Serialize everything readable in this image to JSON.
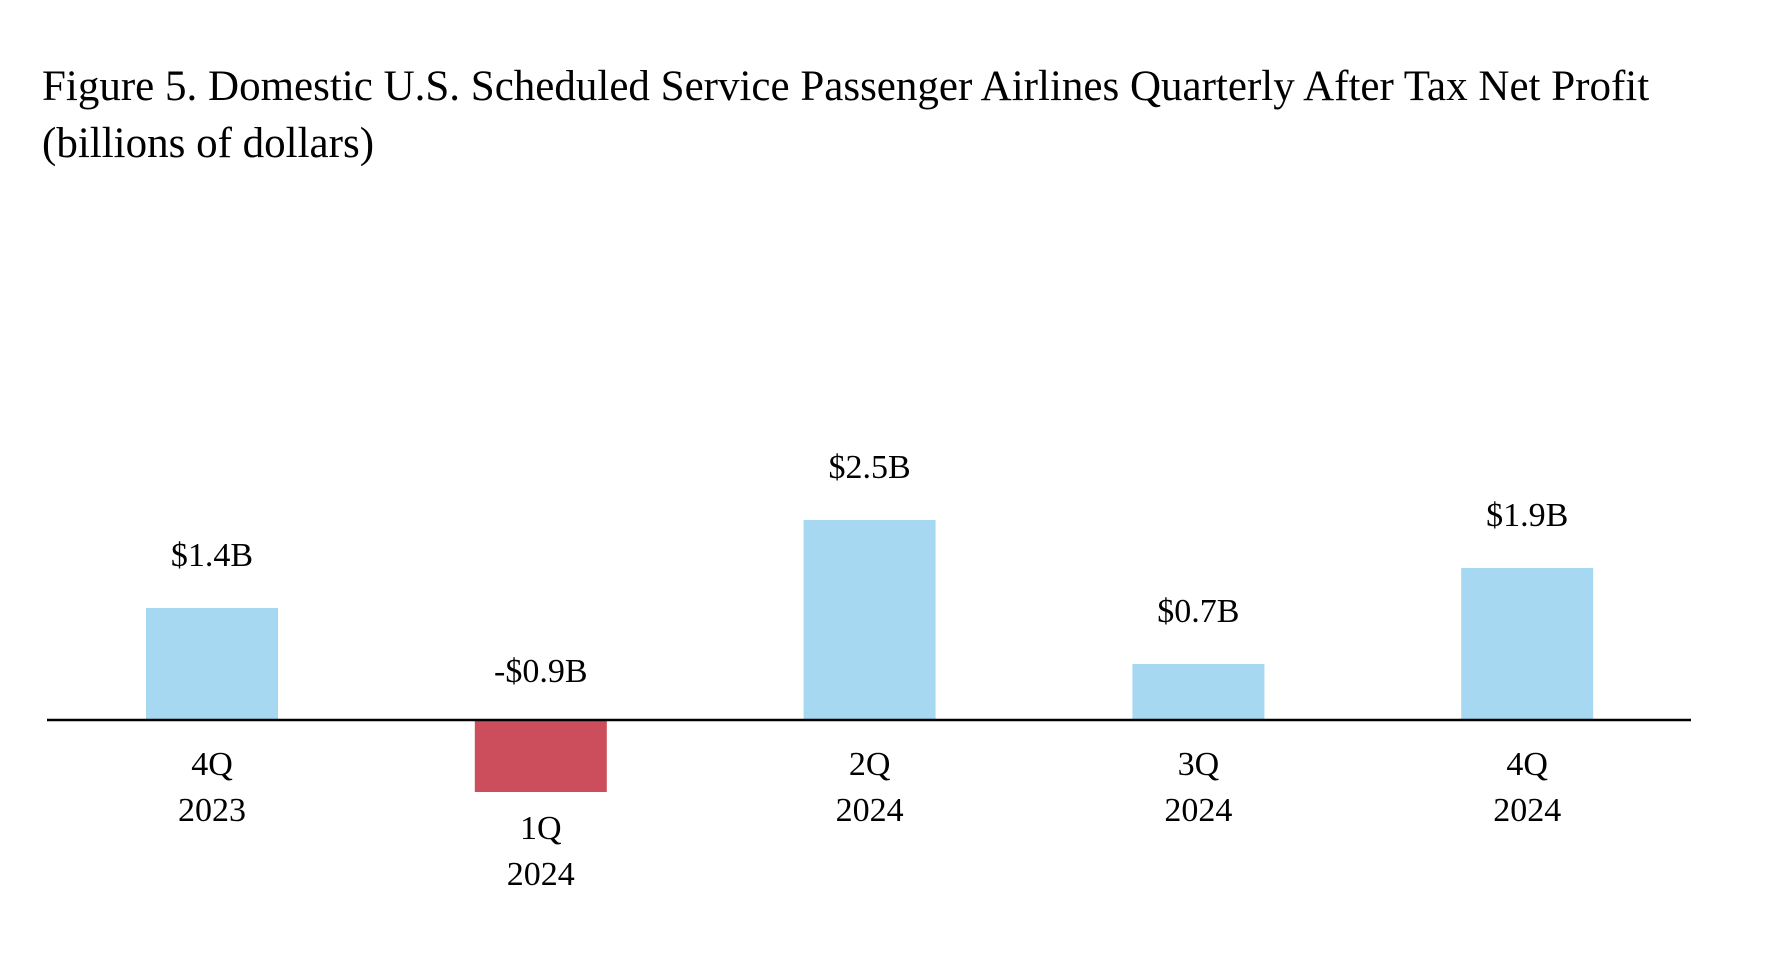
{
  "chart_data": {
    "type": "bar",
    "title": "Figure 5. Domestic U.S. Scheduled Service Passenger Airlines Quarterly After Tax Net Profit",
    "subtitle": "(billions of dollars)",
    "xlabel": "",
    "ylabel": "",
    "categories": [
      [
        "4Q",
        "2023"
      ],
      [
        "1Q",
        "2024"
      ],
      [
        "2Q",
        "2024"
      ],
      [
        "3Q",
        "2024"
      ],
      [
        "4Q",
        "2024"
      ]
    ],
    "values": [
      1.4,
      -0.9,
      2.5,
      0.7,
      1.9
    ],
    "data_labels": [
      "$1.4B",
      "-$0.9B",
      "$2.5B",
      "$0.7B",
      "$1.9B"
    ],
    "units": "billions of dollars",
    "ylim": [
      -1.0,
      2.5
    ],
    "grid": false,
    "positive_color": "#a6d8f2",
    "negative_color": "#cc4e5c",
    "axis_color": "#000000"
  }
}
